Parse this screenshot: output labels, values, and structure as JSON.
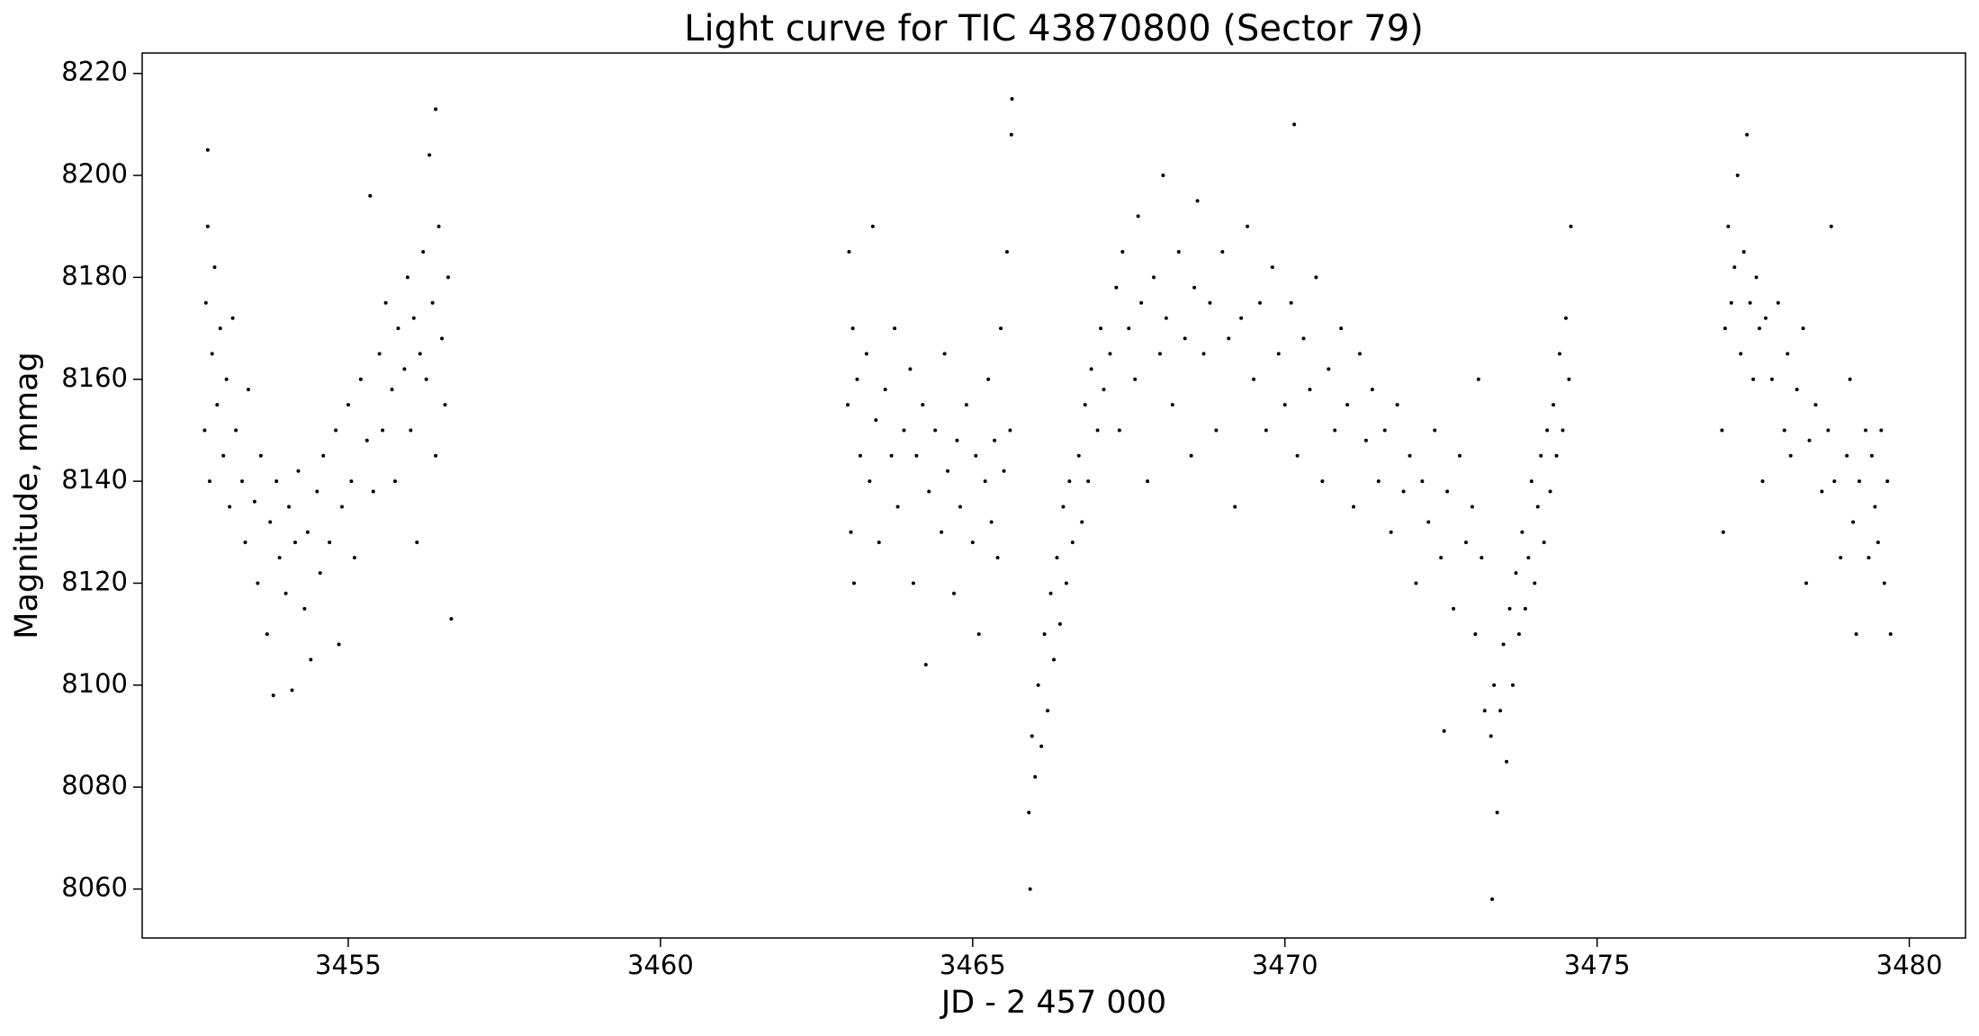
{
  "chart_data": {
    "type": "scatter",
    "title": "Light curve for TIC 43870800 (Sector 79)",
    "x_label": "JD - 2 457 000",
    "y_label": "Magnitude, mmag",
    "color": "#000000",
    "xlim": [
      3451.7,
      3480.9
    ],
    "ylim": [
      8050.4,
      8224.0
    ],
    "xticks": [
      3455,
      3460,
      3465,
      3470,
      3475,
      3480
    ],
    "yticks": [
      8060,
      8080,
      8100,
      8120,
      8140,
      8160,
      8180,
      8200,
      8220
    ],
    "x": [
      3452.7,
      3452.72,
      3452.75,
      3452.78,
      3452.82,
      3452.86,
      3452.9,
      3452.95,
      3453.0,
      3453.05,
      3453.1,
      3453.15,
      3453.2,
      3453.3,
      3453.35,
      3453.4,
      3453.5,
      3453.55,
      3453.6,
      3453.7,
      3453.75,
      3453.8,
      3453.85,
      3453.9,
      3454.0,
      3454.05,
      3454.1,
      3454.15,
      3454.2,
      3454.3,
      3454.35,
      3454.4,
      3454.5,
      3454.55,
      3454.6,
      3454.7,
      3454.8,
      3454.85,
      3454.9,
      3455.0,
      3455.05,
      3455.1,
      3455.2,
      3455.3,
      3455.35,
      3455.4,
      3455.5,
      3455.55,
      3455.6,
      3455.7,
      3455.75,
      3455.8,
      3455.9,
      3455.95,
      3456.0,
      3456.05,
      3456.1,
      3456.15,
      3456.2,
      3456.25,
      3456.3,
      3456.35,
      3456.4,
      3456.45,
      3456.5,
      3456.55,
      3456.6,
      3456.65,
      3452.75,
      3456.4,
      3463.0,
      3463.02,
      3463.05,
      3463.08,
      3463.1,
      3463.15,
      3463.2,
      3463.3,
      3463.35,
      3463.4,
      3463.45,
      3463.5,
      3463.6,
      3463.7,
      3463.75,
      3463.8,
      3463.9,
      3464.0,
      3464.05,
      3464.1,
      3464.2,
      3464.25,
      3464.3,
      3464.4,
      3464.5,
      3464.55,
      3464.6,
      3464.7,
      3464.75,
      3464.8,
      3464.9,
      3465.0,
      3465.05,
      3465.1,
      3465.2,
      3465.25,
      3465.3,
      3465.35,
      3465.4,
      3465.45,
      3465.5,
      3465.55,
      3465.6,
      3465.62,
      3465.63,
      3465.9,
      3465.92,
      3465.95,
      3466.0,
      3466.05,
      3466.1,
      3466.15,
      3466.2,
      3466.25,
      3466.3,
      3466.35,
      3466.4,
      3466.45,
      3466.5,
      3466.55,
      3466.6,
      3466.7,
      3466.75,
      3466.8,
      3466.85,
      3466.9,
      3467.0,
      3467.05,
      3467.1,
      3467.2,
      3467.3,
      3467.35,
      3467.4,
      3467.5,
      3467.6,
      3467.65,
      3467.7,
      3467.8,
      3467.9,
      3468.0,
      3468.05,
      3468.1,
      3468.2,
      3468.3,
      3468.4,
      3468.5,
      3468.55,
      3468.6,
      3468.7,
      3468.8,
      3468.9,
      3469.0,
      3469.1,
      3469.2,
      3469.3,
      3469.4,
      3469.5,
      3469.6,
      3469.7,
      3469.8,
      3469.9,
      3470.0,
      3470.1,
      3470.15,
      3470.2,
      3470.3,
      3470.4,
      3470.5,
      3470.6,
      3470.7,
      3470.8,
      3470.9,
      3471.0,
      3471.1,
      3471.2,
      3471.3,
      3471.4,
      3471.5,
      3471.6,
      3471.7,
      3471.8,
      3471.9,
      3472.0,
      3472.1,
      3472.2,
      3472.3,
      3472.4,
      3472.5,
      3472.55,
      3472.6,
      3472.7,
      3472.8,
      3472.9,
      3473.0,
      3473.05,
      3473.1,
      3473.15,
      3473.2,
      3473.3,
      3473.32,
      3473.35,
      3473.4,
      3473.45,
      3473.5,
      3473.55,
      3473.6,
      3473.65,
      3473.7,
      3473.75,
      3473.8,
      3473.85,
      3473.9,
      3473.95,
      3474.0,
      3474.05,
      3474.1,
      3474.15,
      3474.2,
      3474.25,
      3474.3,
      3474.35,
      3474.4,
      3474.45,
      3474.5,
      3474.55,
      3474.58,
      3477.0,
      3477.02,
      3477.05,
      3477.1,
      3477.15,
      3477.2,
      3477.25,
      3477.3,
      3477.35,
      3477.4,
      3477.45,
      3477.5,
      3477.55,
      3477.6,
      3477.65,
      3477.7,
      3477.8,
      3477.9,
      3478.0,
      3478.05,
      3478.1,
      3478.2,
      3478.3,
      3478.35,
      3478.4,
      3478.5,
      3478.6,
      3478.7,
      3478.75,
      3478.8,
      3478.9,
      3479.0,
      3479.05,
      3479.1,
      3479.15,
      3479.2,
      3479.3,
      3479.35,
      3479.4,
      3479.45,
      3479.5,
      3479.55,
      3479.6,
      3479.65,
      3479.7
    ],
    "values": [
      8150,
      8175,
      8190,
      8140,
      8165,
      8182,
      8155,
      8170,
      8145,
      8160,
      8135,
      8172,
      8150,
      8140,
      8128,
      8158,
      8136,
      8120,
      8145,
      8110,
      8132,
      8098,
      8140,
      8125,
      8118,
      8135,
      8099,
      8128,
      8142,
      8115,
      8130,
      8105,
      8138,
      8122,
      8145,
      8128,
      8150,
      8108,
      8135,
      8155,
      8140,
      8125,
      8160,
      8148,
      8196,
      8138,
      8165,
      8150,
      8175,
      8158,
      8140,
      8170,
      8162,
      8180,
      8150,
      8172,
      8128,
      8165,
      8185,
      8160,
      8204,
      8175,
      8145,
      8190,
      8168,
      8155,
      8180,
      8113,
      8205,
      8213,
      8155,
      8185,
      8130,
      8170,
      8120,
      8160,
      8145,
      8165,
      8140,
      8190,
      8152,
      8128,
      8158,
      8145,
      8170,
      8135,
      8150,
      8162,
      8120,
      8145,
      8155,
      8104,
      8138,
      8150,
      8130,
      8165,
      8142,
      8118,
      8148,
      8135,
      8155,
      8128,
      8145,
      8110,
      8140,
      8160,
      8132,
      8148,
      8125,
      8170,
      8142,
      8185,
      8150,
      8208,
      8215,
      8075,
      8060,
      8090,
      8082,
      8100,
      8088,
      8110,
      8095,
      8118,
      8105,
      8125,
      8112,
      8135,
      8120,
      8140,
      8128,
      8145,
      8132,
      8155,
      8140,
      8162,
      8150,
      8170,
      8158,
      8165,
      8178,
      8150,
      8185,
      8170,
      8160,
      8192,
      8175,
      8140,
      8180,
      8165,
      8200,
      8172,
      8155,
      8185,
      8168,
      8145,
      8178,
      8195,
      8165,
      8175,
      8150,
      8185,
      8168,
      8135,
      8172,
      8190,
      8160,
      8175,
      8150,
      8182,
      8165,
      8155,
      8175,
      8210,
      8145,
      8168,
      8158,
      8180,
      8140,
      8162,
      8150,
      8170,
      8155,
      8135,
      8165,
      8148,
      8158,
      8140,
      8150,
      8130,
      8155,
      8138,
      8145,
      8120,
      8140,
      8132,
      8150,
      8125,
      8091,
      8138,
      8115,
      8145,
      8128,
      8135,
      8110,
      8160,
      8125,
      8095,
      8090,
      8058,
      8100,
      8075,
      8095,
      8108,
      8085,
      8115,
      8100,
      8122,
      8110,
      8130,
      8115,
      8125,
      8140,
      8120,
      8135,
      8145,
      8128,
      8150,
      8138,
      8155,
      8145,
      8165,
      8150,
      8172,
      8160,
      8190,
      8150,
      8130,
      8170,
      8190,
      8175,
      8182,
      8200,
      8165,
      8185,
      8208,
      8175,
      8160,
      8180,
      8170,
      8140,
      8172,
      8160,
      8175,
      8150,
      8165,
      8145,
      8158,
      8170,
      8120,
      8148,
      8155,
      8138,
      8150,
      8190,
      8140,
      8125,
      8145,
      8160,
      8132,
      8110,
      8140,
      8150,
      8125,
      8145,
      8135,
      8128,
      8150,
      8120,
      8140,
      8110
    ]
  }
}
